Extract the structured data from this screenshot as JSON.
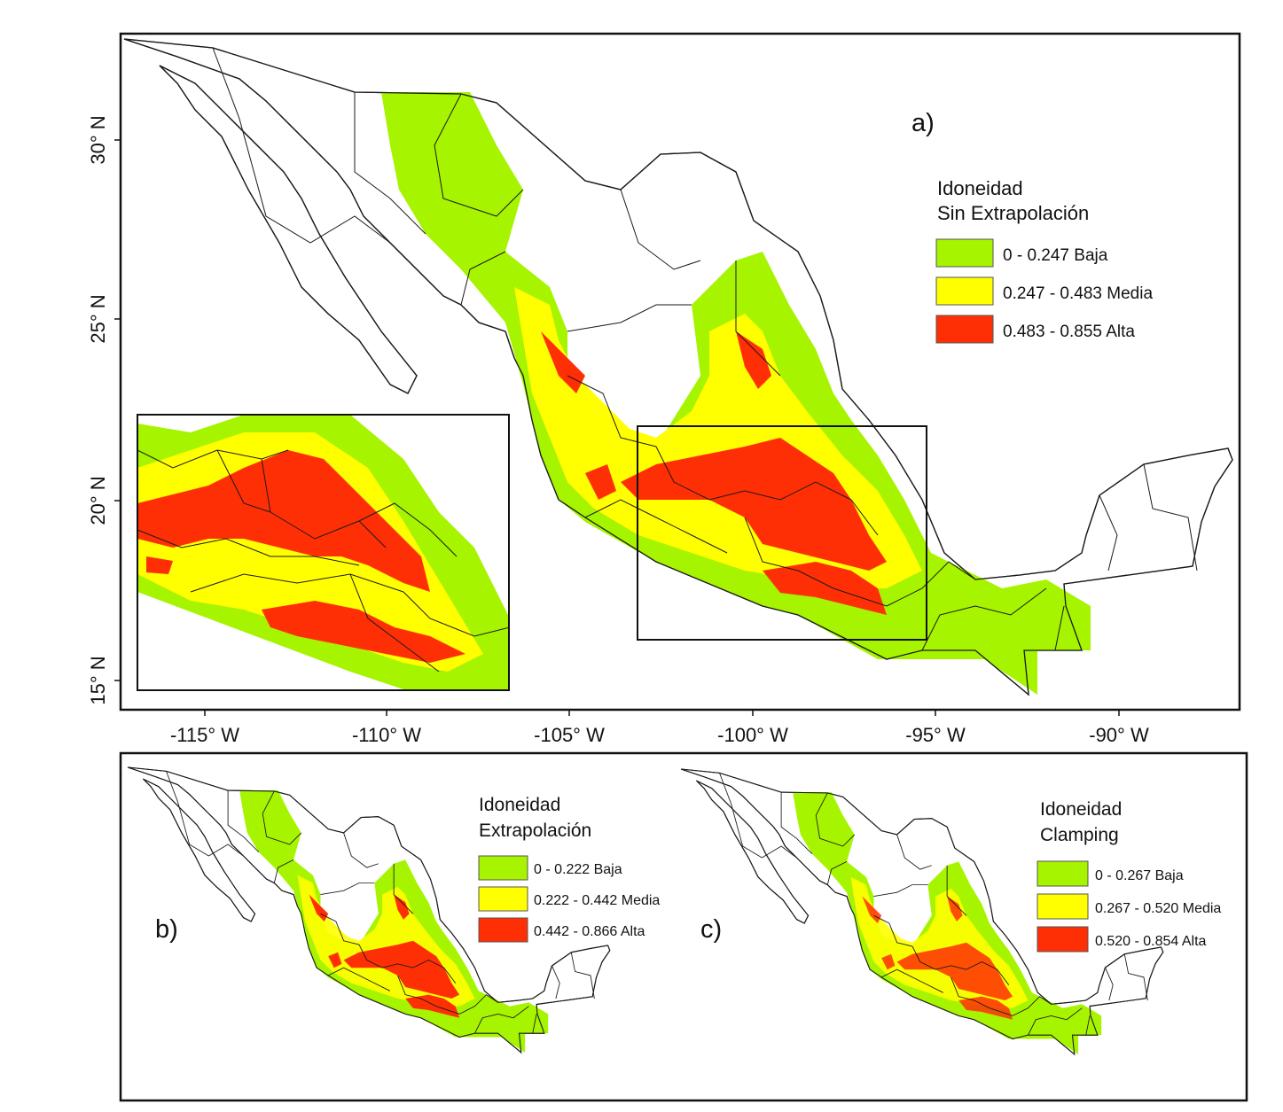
{
  "colors": {
    "low": "#a6f400",
    "medium": "#ffff00",
    "high": "#ff2f05",
    "frame": "#111111",
    "border": "#1a1a1a"
  },
  "panel_a": {
    "label": "a)",
    "legend": {
      "title_line1": "Idoneidad",
      "title_line2": "Sin Extrapolación",
      "items": [
        {
          "label": "0 - 0.247 Baja",
          "color": "#a6f400"
        },
        {
          "label": "0.247 - 0.483 Media",
          "color": "#ffff00"
        },
        {
          "label": "0.483 - 0.855 Alta",
          "color": "#ff2f05"
        }
      ]
    },
    "x_ticks": [
      "-115° W",
      "-110° W",
      "-105° W",
      "-100° W",
      "-95° W",
      "-90° W"
    ],
    "y_ticks": [
      "30° N",
      "25° N",
      "20° N",
      "15° N"
    ]
  },
  "panel_b": {
    "label": "b)",
    "legend": {
      "title_line1": "Idoneidad",
      "title_line2": "Extrapolación",
      "items": [
        {
          "label": "0 - 0.222 Baja",
          "color": "#a6f400"
        },
        {
          "label": "0.222 - 0.442 Media",
          "color": "#ffff00"
        },
        {
          "label": "0.442 - 0.866 Alta",
          "color": "#ff2f05"
        }
      ]
    }
  },
  "panel_c": {
    "label": "c)",
    "legend": {
      "title_line1": "Idoneidad",
      "title_line2": "Clamping",
      "items": [
        {
          "label": "0 - 0.267 Baja",
          "color": "#a6f400"
        },
        {
          "label": "0.267 - 0.520 Media",
          "color": "#ffff00"
        },
        {
          "label": "0.520 - 0.854 Alta",
          "color": "#ff2f05"
        }
      ]
    }
  }
}
